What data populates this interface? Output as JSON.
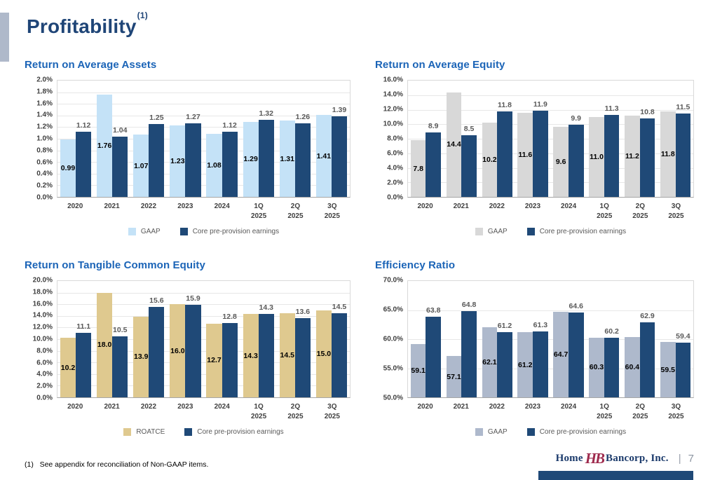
{
  "page": {
    "title": "Profitability",
    "title_superscript": "(1)",
    "footnote": "(1)   See appendix for reconciliation of Non-GAAP items.",
    "page_number": "7",
    "page_separator": "|",
    "logo": {
      "home": "Home",
      "monogram": "HB",
      "bancorp": "Bancorp, Inc."
    }
  },
  "colors": {
    "title_navy": "#1F4577",
    "heading_blue": "#1B64B7",
    "bar_navy": "#1F4977",
    "bar_light_blue": "#C4E2F7",
    "bar_gray": "#D8D8D8",
    "bar_tan": "#DFC98F",
    "bar_blue_gray": "#AEB9CC",
    "accent_bar": "#AFB9CA",
    "footer_bar": "#1F4977",
    "logo_maroon": "#9E2A4D"
  },
  "chart_data": [
    {
      "type": "bar",
      "title": "Return on Average Assets",
      "categories": [
        "2020",
        "2021",
        "2022",
        "2023",
        "2024",
        "1Q 2025",
        "2Q 2025",
        "3Q 2025"
      ],
      "series": [
        {
          "name": "GAAP",
          "color": "#C4E2F7",
          "label_position": "inside-center",
          "label_color": "#000000",
          "values": [
            0.99,
            1.76,
            1.07,
            1.23,
            1.08,
            1.29,
            1.31,
            1.41
          ]
        },
        {
          "name": "Core pre-provision earnings",
          "color": "#1F4977",
          "label_position": "outside-top",
          "label_color": "#595959",
          "values": [
            1.12,
            1.04,
            1.25,
            1.27,
            1.12,
            1.32,
            1.26,
            1.39
          ]
        }
      ],
      "ylim": [
        0,
        2.0
      ],
      "ytick_step": 0.2,
      "ytick_suffix": "%",
      "value_decimals": 2,
      "grid": true,
      "legend_position": "bottom"
    },
    {
      "type": "bar",
      "title": "Return on Average Equity",
      "categories": [
        "2020",
        "2021",
        "2022",
        "2023",
        "2024",
        "1Q 2025",
        "2Q 2025",
        "3Q 2025"
      ],
      "series": [
        {
          "name": "GAAP",
          "color": "#D8D8D8",
          "label_position": "inside-center",
          "label_color": "#000000",
          "values": [
            7.8,
            14.4,
            10.2,
            11.6,
            9.6,
            11.0,
            11.2,
            11.8
          ]
        },
        {
          "name": "Core pre-provision earnings",
          "color": "#1F4977",
          "label_position": "outside-top",
          "label_color": "#595959",
          "values": [
            8.9,
            8.5,
            11.8,
            11.9,
            9.9,
            11.3,
            10.8,
            11.5
          ]
        }
      ],
      "ylim": [
        0,
        16.0
      ],
      "ytick_step": 2.0,
      "ytick_suffix": "%",
      "value_decimals": 1,
      "grid": true,
      "legend_position": "bottom"
    },
    {
      "type": "bar",
      "title": "Return on Tangible Common Equity",
      "categories": [
        "2020",
        "2021",
        "2022",
        "2023",
        "2024",
        "1Q 2025",
        "2Q 2025",
        "3Q 2025"
      ],
      "series": [
        {
          "name": "ROATCE",
          "color": "#DFC98F",
          "label_position": "inside-center",
          "label_color": "#000000",
          "values": [
            10.2,
            18.0,
            13.9,
            16.0,
            12.7,
            14.3,
            14.5,
            15.0
          ]
        },
        {
          "name": "Core pre-provision earnings",
          "color": "#1F4977",
          "label_position": "outside-top",
          "label_color": "#595959",
          "values": [
            11.1,
            10.5,
            15.6,
            15.9,
            12.8,
            14.3,
            13.6,
            14.5
          ]
        }
      ],
      "ylim": [
        0,
        20.0
      ],
      "ytick_step": 2.0,
      "ytick_suffix": "%",
      "value_decimals": 1,
      "grid": true,
      "legend_position": "bottom"
    },
    {
      "type": "bar",
      "title": "Efficiency Ratio",
      "categories": [
        "2020",
        "2021",
        "2022",
        "2023",
        "2024",
        "1Q 2025",
        "2Q 2025",
        "3Q 2025"
      ],
      "series": [
        {
          "name": "GAAP",
          "color": "#AEB9CC",
          "label_position": "inside-center",
          "label_color": "#000000",
          "values": [
            59.1,
            57.1,
            62.1,
            61.2,
            64.7,
            60.3,
            60.4,
            59.5
          ]
        },
        {
          "name": "Core pre-provision earnings",
          "color": "#1F4977",
          "label_position": "outside-top",
          "label_color": "#595959",
          "values": [
            63.8,
            64.8,
            61.2,
            61.3,
            64.6,
            60.2,
            62.9,
            59.4
          ]
        }
      ],
      "ylim": [
        50.0,
        70.0
      ],
      "ytick_step": 5.0,
      "ytick_suffix": "%",
      "value_decimals": 1,
      "grid": true,
      "legend_position": "bottom"
    }
  ]
}
